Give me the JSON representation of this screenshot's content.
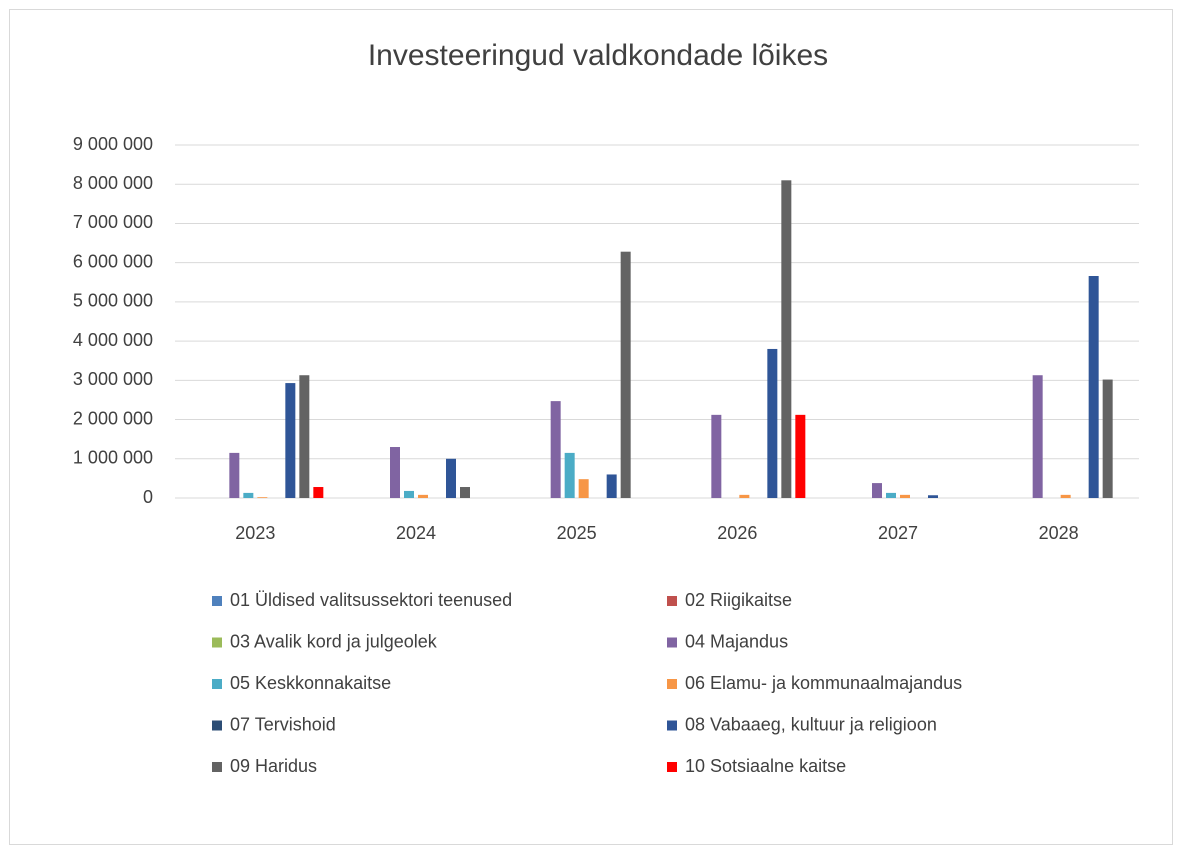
{
  "chart_data": {
    "type": "bar",
    "title": "Investeeringud valdkondade lõikes",
    "categories": [
      "2023",
      "2024",
      "2025",
      "2026",
      "2027",
      "2028"
    ],
    "series": [
      {
        "name": "01 Üldised valitsussektori teenused",
        "color": "#4f81bd",
        "values": [
          0,
          0,
          0,
          0,
          0,
          0
        ]
      },
      {
        "name": "02 Riigikaitse",
        "color": "#c0504d",
        "values": [
          0,
          0,
          0,
          0,
          0,
          0
        ]
      },
      {
        "name": "03 Avalik kord ja julgeolek",
        "color": "#9bbb59",
        "values": [
          0,
          0,
          0,
          0,
          0,
          0
        ]
      },
      {
        "name": "04 Majandus",
        "color": "#8064a2",
        "values": [
          1150000,
          1300000,
          2470000,
          2120000,
          380000,
          3130000
        ]
      },
      {
        "name": "05 Keskkonnakaitse",
        "color": "#4bacc6",
        "values": [
          130000,
          180000,
          1150000,
          0,
          130000,
          0
        ]
      },
      {
        "name": "06 Elamu- ja kommunaalmajandus",
        "color": "#f79646",
        "values": [
          20000,
          80000,
          480000,
          80000,
          80000,
          80000
        ]
      },
      {
        "name": "07 Tervishoid",
        "color": "#2c4d75",
        "values": [
          0,
          0,
          0,
          0,
          0,
          0
        ]
      },
      {
        "name": "08 Vabaaeg, kultuur ja religioon",
        "color": "#2f5597",
        "values": [
          2930000,
          1000000,
          600000,
          3800000,
          70000,
          5660000
        ]
      },
      {
        "name": "09 Haridus",
        "color": "#636363",
        "values": [
          3130000,
          280000,
          6280000,
          8100000,
          0,
          3020000
        ]
      },
      {
        "name": "10 Sotsiaalne kaitse",
        "color": "#ff0000",
        "values": [
          280000,
          0,
          0,
          2120000,
          0,
          0
        ]
      }
    ],
    "ylim": [
      0,
      9000000
    ],
    "yticks": [
      0,
      {
        "value": 1000000,
        "label": "1 000 000"
      },
      {
        "value": 2000000,
        "label": "2 000 000"
      },
      {
        "value": 3000000,
        "label": "3 000 000"
      },
      {
        "value": 4000000,
        "label": "4 000 000"
      },
      {
        "value": 5000000,
        "label": "5 000 000"
      },
      {
        "value": 6000000,
        "label": "6 000 000"
      },
      {
        "value": 7000000,
        "label": "7 000 000"
      },
      {
        "value": 8000000,
        "label": "8 000 000"
      },
      {
        "value": 9000000,
        "label": "9 000 000"
      }
    ],
    "grid": true,
    "legend": "bottom"
  }
}
